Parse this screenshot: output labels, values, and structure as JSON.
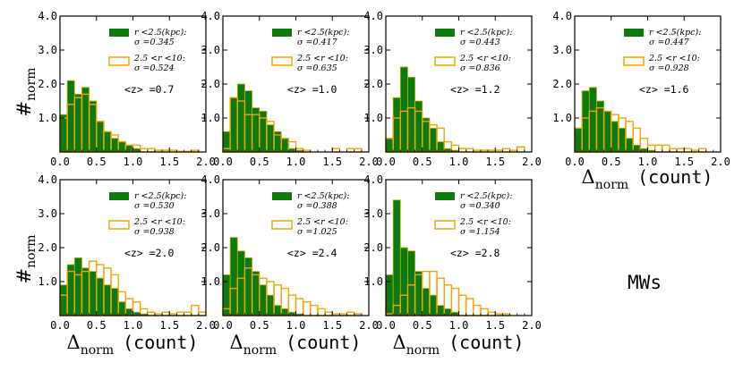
{
  "colors": {
    "inner": "#0c7a0c",
    "inner_edge": "#b8b200",
    "outer": "#f0a500",
    "axis": "#000000"
  },
  "chart_data": {
    "type": "histogram",
    "xlabel": {
      "sym": "Δ",
      "sub": "norm",
      "unit": "(count)"
    },
    "ylabel": {
      "sym": "#",
      "sub": "norm"
    },
    "xlim": [
      0,
      2
    ],
    "ylim": [
      0,
      4
    ],
    "xticks": [
      "0.0",
      "0.5",
      "1.0",
      "1.5",
      "2.0"
    ],
    "yticks": [
      "1.0",
      "2.0",
      "3.0",
      "4.0"
    ],
    "bin_width": 0.1,
    "annotation": "MWs",
    "legend": {
      "inner": {
        "prefix": "r <2.5(kpc):",
        "sigma_prefix": "σ ="
      },
      "outer": {
        "prefix": "2.5 <r <10:",
        "sigma_prefix": "σ ="
      }
    },
    "panels": [
      {
        "z_label": "<z> =0.7",
        "sigma_inner": "0.345",
        "sigma_outer": "0.524",
        "inner": [
          1.1,
          2.1,
          1.7,
          1.9,
          1.5,
          0.9,
          0.6,
          0.4,
          0.3,
          0.2,
          0.1,
          0,
          0,
          0,
          0,
          0,
          0,
          0,
          0,
          0
        ],
        "outer": [
          1.0,
          1.4,
          1.6,
          1.7,
          1.4,
          0.9,
          0.6,
          0.5,
          0.3,
          0.2,
          0.2,
          0.1,
          0.1,
          0.05,
          0.05,
          0.05,
          0.02,
          0.02,
          0.05,
          0
        ]
      },
      {
        "z_label": "<z> =1.0",
        "sigma_inner": "0.417",
        "sigma_outer": "0.635",
        "inner": [
          0.6,
          1.6,
          2.0,
          1.8,
          1.3,
          1.2,
          0.8,
          0.6,
          0.4,
          0.1,
          0.05,
          0,
          0,
          0,
          0,
          0,
          0,
          0,
          0,
          0
        ],
        "outer": [
          0.1,
          1.6,
          1.5,
          1.1,
          1.1,
          1.0,
          0.9,
          0.5,
          0.4,
          0.3,
          0.1,
          0.05,
          0,
          0,
          0,
          0.1,
          0,
          0.1,
          0.1,
          0
        ]
      },
      {
        "z_label": "<z> =1.2",
        "sigma_inner": "0.443",
        "sigma_outer": "0.836",
        "inner": [
          0.4,
          1.6,
          2.5,
          2.2,
          1.5,
          1.0,
          0.7,
          0.3,
          0.1,
          0.05,
          0,
          0,
          0,
          0,
          0,
          0,
          0,
          0,
          0,
          0
        ],
        "outer": [
          0.4,
          1.0,
          1.2,
          1.3,
          1.2,
          0.9,
          0.8,
          0.7,
          0.3,
          0.2,
          0.1,
          0.1,
          0.05,
          0.05,
          0.05,
          0.05,
          0.1,
          0.05,
          0.15,
          0
        ]
      },
      {
        "z_label": "<z> =1.6",
        "sigma_inner": "0.447",
        "sigma_outer": "0.928",
        "inner": [
          0.7,
          1.8,
          1.9,
          1.5,
          1.2,
          0.9,
          0.7,
          0.4,
          0.2,
          0.1,
          0.05,
          0,
          0,
          0,
          0,
          0,
          0,
          0,
          0,
          0
        ],
        "outer": [
          0.7,
          1.0,
          1.2,
          1.3,
          1.2,
          1.1,
          1.0,
          0.9,
          0.7,
          0.4,
          0.2,
          0.2,
          0.2,
          0.1,
          0.1,
          0.1,
          0.05,
          0.1,
          0,
          0
        ]
      },
      {
        "z_label": "<z> =2.0",
        "sigma_inner": "0.530",
        "sigma_outer": "0.938",
        "inner": [
          0.9,
          1.5,
          1.7,
          1.4,
          1.3,
          1.1,
          0.9,
          0.8,
          0.4,
          0.2,
          0.1,
          0.05,
          0,
          0,
          0,
          0,
          0,
          0,
          0,
          0
        ],
        "outer": [
          0.6,
          1.3,
          1.2,
          1.3,
          1.6,
          1.5,
          1.4,
          1.2,
          0.7,
          0.5,
          0.4,
          0.2,
          0.1,
          0.05,
          0.1,
          0.05,
          0.1,
          0.1,
          0.3,
          0.1
        ]
      },
      {
        "z_label": "<z> =2.4",
        "sigma_inner": "0.388",
        "sigma_outer": "1.025",
        "inner": [
          1.2,
          2.3,
          1.9,
          1.7,
          1.3,
          0.9,
          0.6,
          0.3,
          0.2,
          0.1,
          0.05,
          0,
          0,
          0,
          0,
          0,
          0,
          0,
          0,
          0
        ],
        "outer": [
          0.2,
          0.8,
          1.1,
          1.4,
          1.2,
          1.1,
          1.0,
          0.9,
          0.8,
          0.6,
          0.5,
          0.4,
          0.3,
          0.2,
          0.1,
          0.05,
          0.05,
          0.1,
          0.05,
          0
        ]
      },
      {
        "z_label": "<z> =2.8",
        "sigma_inner": "0.340",
        "sigma_outer": "1.154",
        "inner": [
          1.2,
          3.4,
          2.0,
          1.9,
          1.3,
          0.8,
          0.6,
          0.3,
          0.2,
          0.1,
          0,
          0,
          0,
          0,
          0,
          0,
          0,
          0,
          0,
          0
        ],
        "outer": [
          0.05,
          0.3,
          0.6,
          0.9,
          1.2,
          1.3,
          1.3,
          1.1,
          0.9,
          0.8,
          0.6,
          0.5,
          0.3,
          0.2,
          0.1,
          0.05,
          0.05,
          0,
          0,
          0
        ]
      }
    ]
  }
}
